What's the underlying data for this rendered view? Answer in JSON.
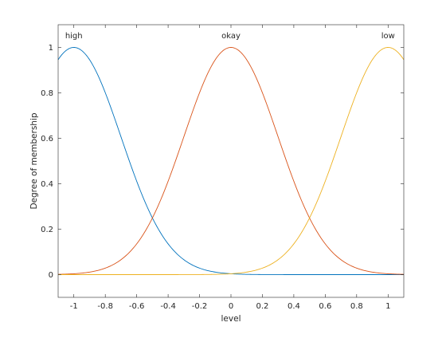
{
  "chart_data": {
    "type": "line",
    "title": "",
    "xlabel": "level",
    "ylabel": "Degree of membership",
    "xlim": [
      -1.1,
      1.1
    ],
    "ylim": [
      -0.1,
      1.1
    ],
    "xticks": [
      -1,
      -0.8,
      -0.6,
      -0.4,
      -0.2,
      0,
      0.2,
      0.4,
      0.6,
      0.8,
      1
    ],
    "xtick_labels": [
      "-1",
      "-0.8",
      "-0.6",
      "-0.4",
      "-0.2",
      "0",
      "0.2",
      "0.4",
      "0.6",
      "0.8",
      "1"
    ],
    "yticks": [
      0,
      0.2,
      0.4,
      0.6,
      0.8,
      1
    ],
    "ytick_labels": [
      "0",
      "0.2",
      "0.4",
      "0.6",
      "0.8",
      "1"
    ],
    "grid": false,
    "series": [
      {
        "name": "high",
        "function": "gaussian",
        "center": -1,
        "sigma": 0.3,
        "color": "#0072BD",
        "label_x": -1
      },
      {
        "name": "okay",
        "function": "gaussian",
        "center": 0,
        "sigma": 0.3,
        "color": "#D95319",
        "label_x": 0
      },
      {
        "name": "low",
        "function": "gaussian",
        "center": 1,
        "sigma": 0.3,
        "color": "#EDB120",
        "label_x": 1
      }
    ]
  }
}
